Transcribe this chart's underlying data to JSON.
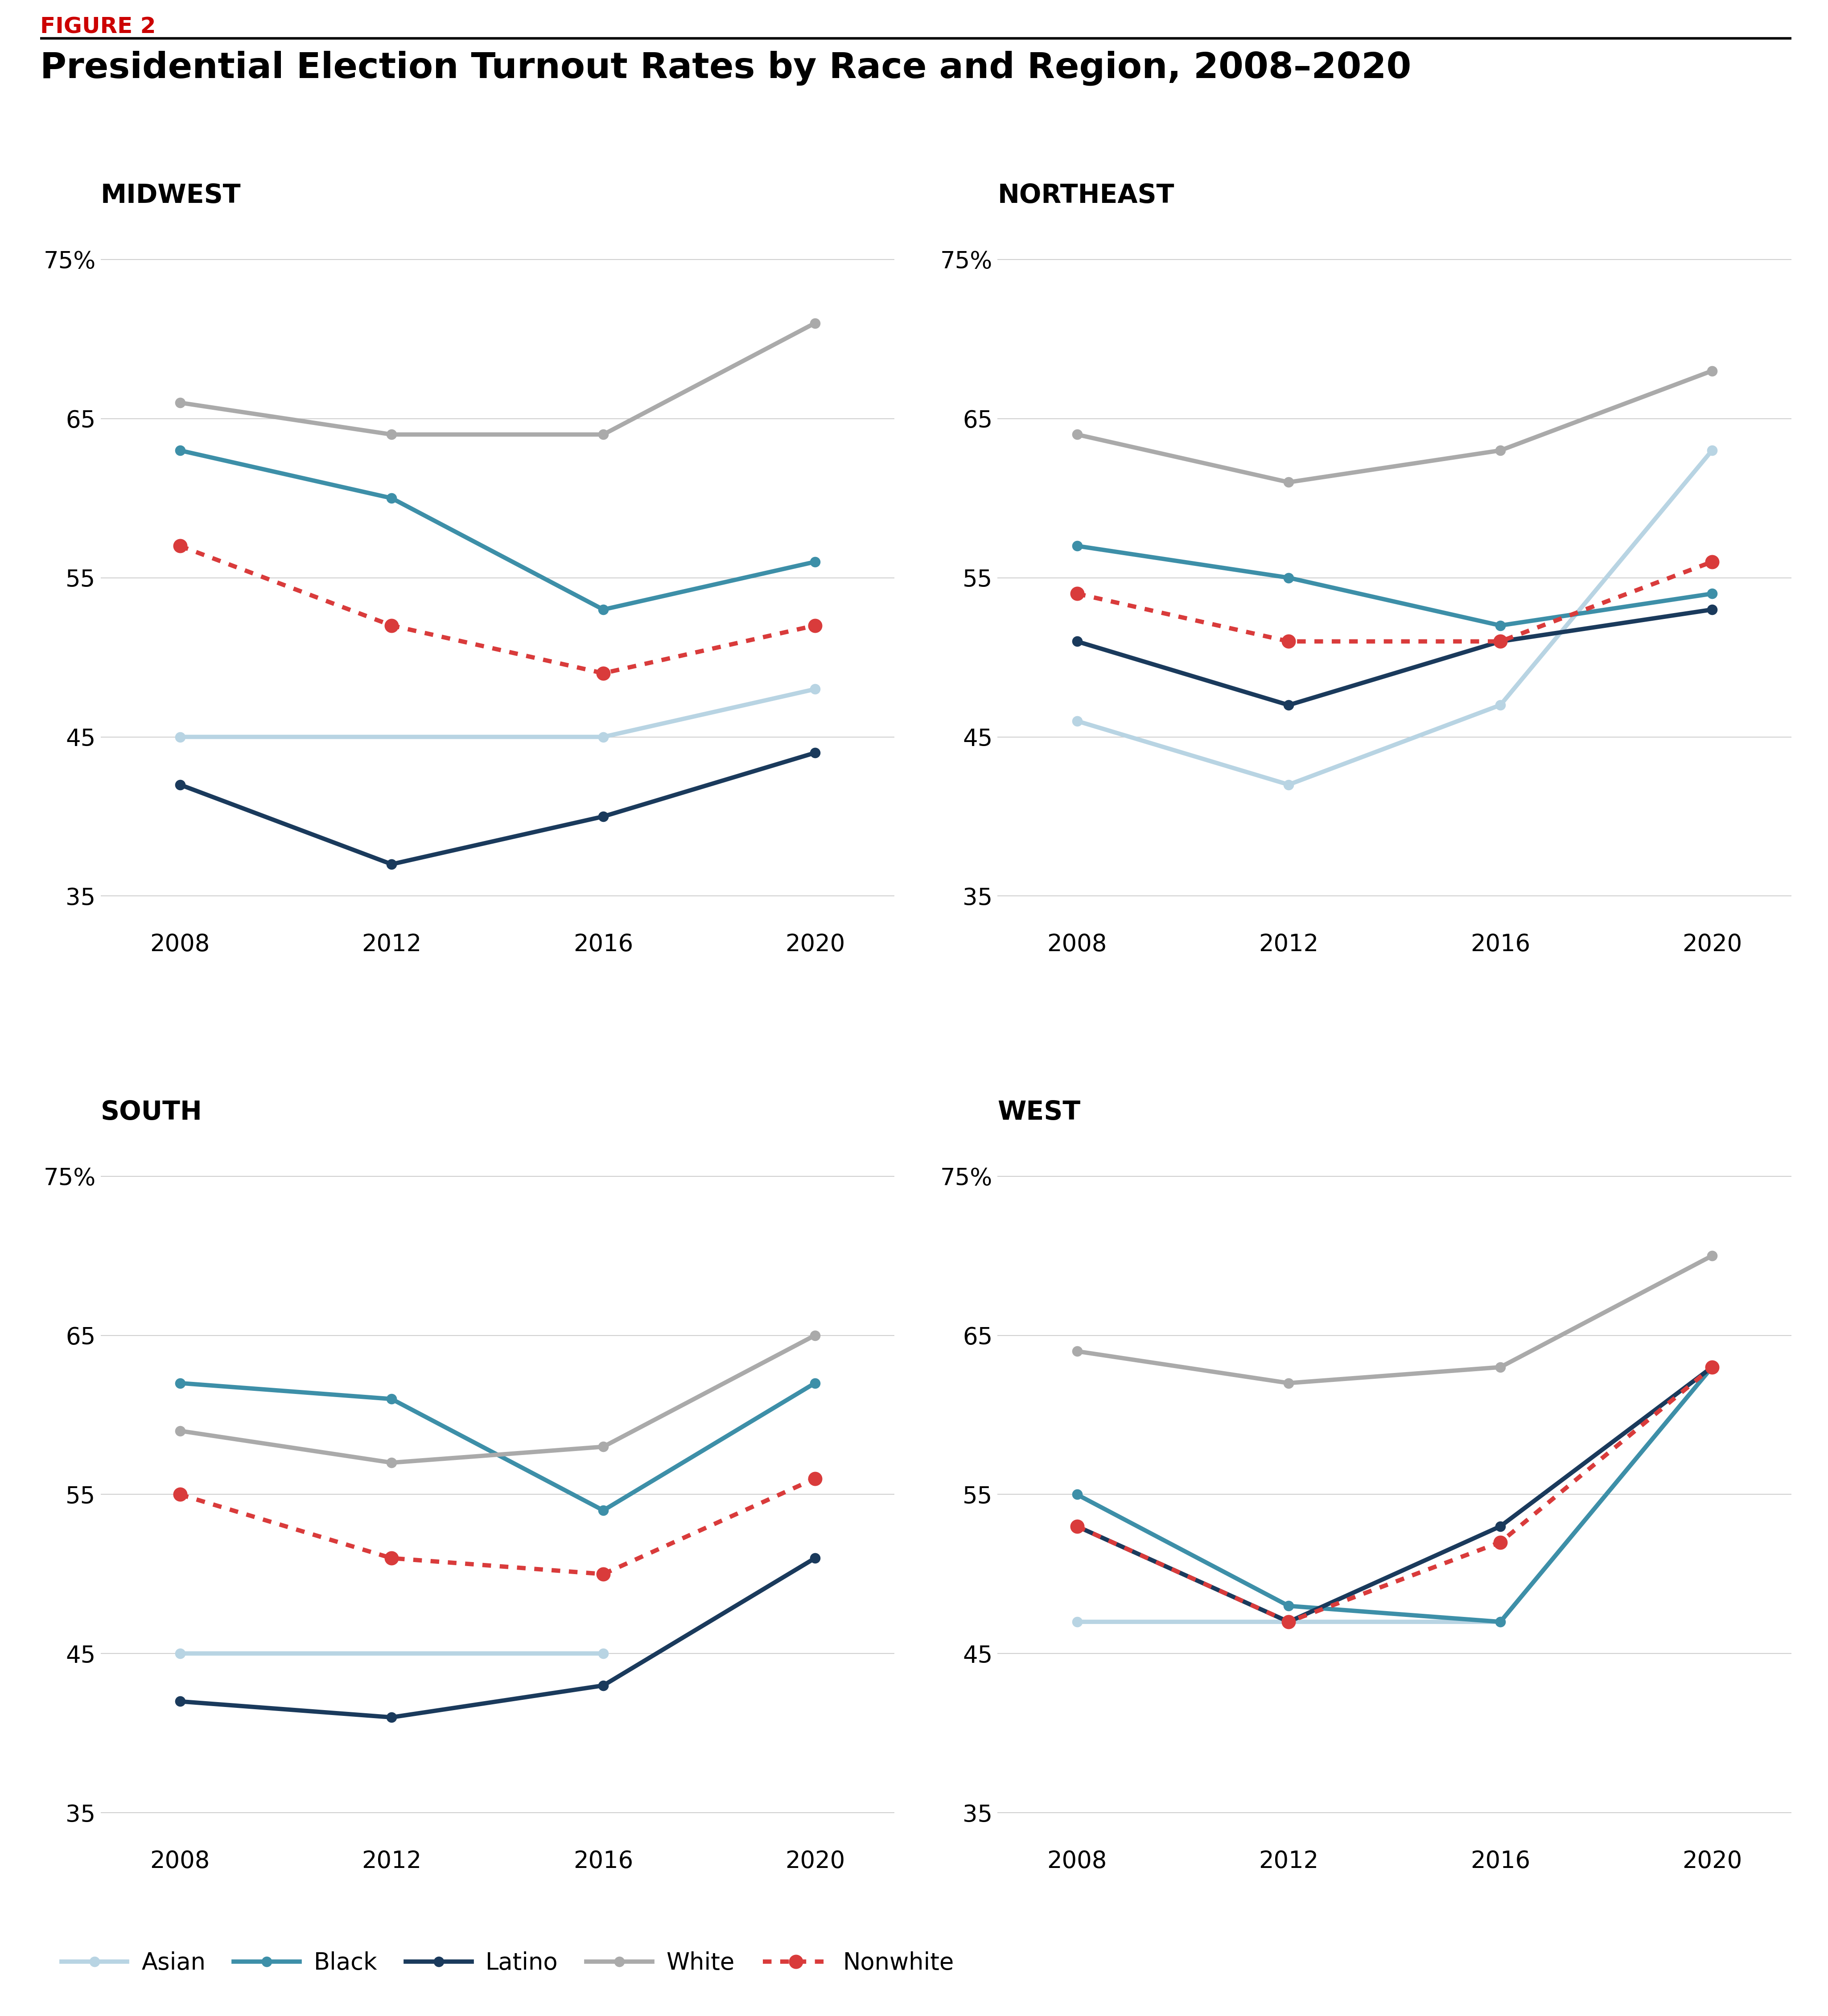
{
  "title": "Presidential Election Turnout Rates by Race and Region, 2008–2020",
  "figure_label": "FIGURE 2",
  "years": [
    2008,
    2012,
    2016,
    2020
  ],
  "regions": [
    "MIDWEST",
    "NORTHEAST",
    "SOUTH",
    "WEST"
  ],
  "data": {
    "MIDWEST": {
      "Asian": [
        45,
        null,
        45,
        48
      ],
      "Black": [
        63,
        60,
        53,
        56
      ],
      "Latino": [
        42,
        37,
        40,
        44
      ],
      "White": [
        66,
        64,
        64,
        71
      ],
      "Nonwhite": [
        57,
        52,
        49,
        52
      ]
    },
    "NORTHEAST": {
      "Asian": [
        46,
        42,
        47,
        63
      ],
      "Black": [
        57,
        55,
        52,
        54
      ],
      "Latino": [
        51,
        47,
        51,
        53
      ],
      "White": [
        64,
        61,
        63,
        68
      ],
      "Nonwhite": [
        54,
        51,
        51,
        56
      ]
    },
    "SOUTH": {
      "Asian": [
        45,
        null,
        45,
        null
      ],
      "Black": [
        62,
        61,
        54,
        62
      ],
      "Latino": [
        42,
        41,
        43,
        51
      ],
      "White": [
        59,
        57,
        58,
        65
      ],
      "Nonwhite": [
        55,
        51,
        50,
        56
      ]
    },
    "WEST": {
      "Asian": [
        47,
        null,
        47,
        63
      ],
      "Black": [
        55,
        48,
        47,
        63
      ],
      "Latino": [
        53,
        47,
        53,
        63
      ],
      "White": [
        64,
        62,
        63,
        70
      ],
      "Nonwhite": [
        53,
        47,
        52,
        63
      ]
    }
  },
  "colors": {
    "Asian": "#b8d4e3",
    "Black": "#3d8fa8",
    "Latino": "#1a3a5c",
    "White": "#aaaaaa",
    "Nonwhite": "#d93b3b"
  },
  "ylim": [
    33,
    78
  ],
  "yticks": [
    35,
    45,
    55,
    65,
    75
  ],
  "background_color": "#ffffff",
  "grid_color": "#d0d0d0",
  "title_fontsize": 58,
  "region_label_fontsize": 42,
  "tick_fontsize": 38,
  "legend_fontsize": 38,
  "figure_label_fontsize": 36,
  "line_width": 7,
  "marker_size": 16,
  "nonwhite_marker_size": 22
}
